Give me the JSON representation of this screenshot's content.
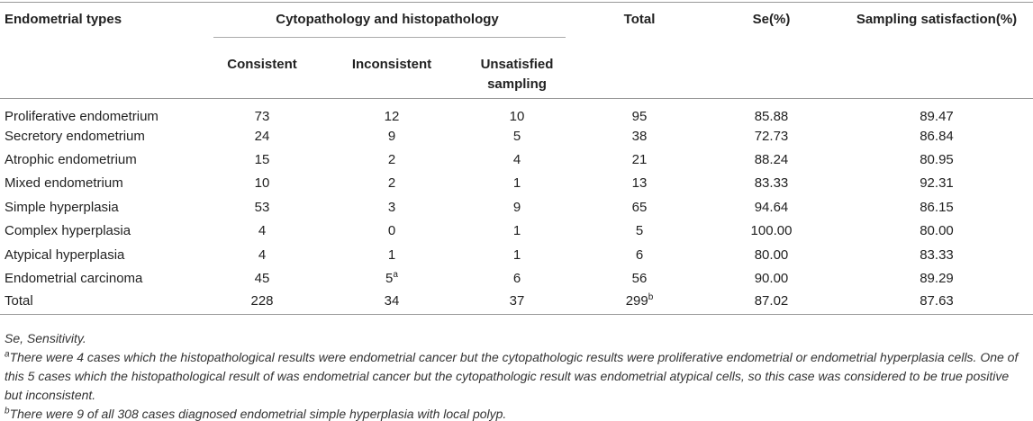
{
  "table": {
    "header": [
      "Endometrial types",
      "Cytopathology and histopathology",
      "Total",
      "Se(%)",
      "Sampling satisfaction(%)"
    ],
    "subheader": [
      "Consistent",
      "Inconsistent",
      "Unsatisfied sampling"
    ],
    "rows": [
      [
        "Proliferative endometrium",
        "73",
        "12",
        "10",
        "95",
        "85.88",
        "89.47"
      ],
      [
        "Secretory endometrium",
        "24",
        "9",
        "5",
        "38",
        "72.73",
        "86.84"
      ],
      [
        "Atrophic endometrium",
        "15",
        "2",
        "4",
        "21",
        "88.24",
        "80.95"
      ],
      [
        "Mixed endometrium",
        "10",
        "2",
        "1",
        "13",
        "83.33",
        "92.31"
      ],
      [
        "Simple hyperplasia",
        "53",
        "3",
        "9",
        "65",
        "94.64",
        "86.15"
      ],
      [
        "Complex hyperplasia",
        "4",
        "0",
        "1",
        "5",
        "100.00",
        "80.00"
      ],
      [
        "Atypical hyperplasia",
        "4",
        "1",
        "1",
        "6",
        "80.00",
        "83.33"
      ],
      [
        "Endometrial carcinoma",
        "45",
        {
          "text": "5",
          "sup": "a"
        },
        "6",
        "56",
        "90.00",
        "89.29"
      ],
      [
        "Total",
        "228",
        "34",
        "37",
        {
          "text": "299",
          "sup": "b"
        },
        "87.02",
        "87.63"
      ]
    ]
  },
  "notes": [
    {
      "text": "Se, Sensitivity."
    },
    {
      "sup": "a",
      "text": "There were 4 cases which the histopathological results were endometrial cancer but the cytopathologic results were proliferative endometrial or endometrial hyperplasia cells. One of this 5 cases which the histopathological result of was endometrial cancer but the cytopathologic result was endometrial atypical cells, so this case was considered to be true positive but inconsistent."
    },
    {
      "sup": "b",
      "text": "There were 9 of all 308 cases diagnosed endometrial simple hyperplasia with local polyp."
    }
  ]
}
